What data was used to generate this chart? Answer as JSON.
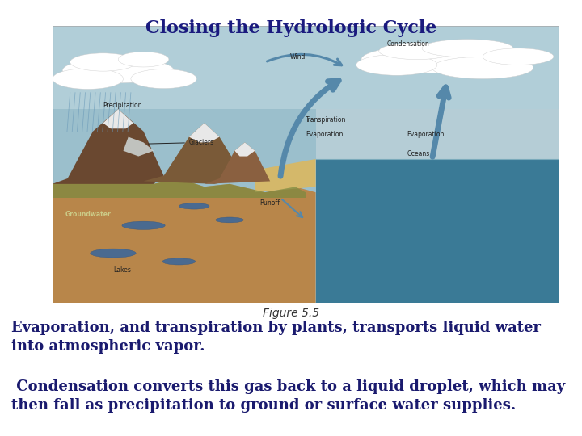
{
  "title": "Closing the Hydrologic Cycle",
  "title_color": "#1a1a7e",
  "title_fontsize": 16,
  "figure_caption": "Figure 5.5",
  "caption_fontsize": 10,
  "caption_color": "#333333",
  "body_text_1": "Evaporation, and transpiration by plants, transports liquid water\ninto atmospheric vapor.",
  "body_text_2": " Condensation converts this gas back to a liquid droplet, which may\nthen fall as precipitation to ground or surface water supplies.",
  "body_text_color": "#1a1a6e",
  "body_fontsize": 13,
  "bg_color": "#ffffff",
  "sky_color": "#9bbfcc",
  "sky_top_color": "#c8dde4",
  "land_color": "#b8864a",
  "ocean_color": "#3a7a96",
  "ocean_sky_color": "#b5cdd6",
  "beach_color": "#d4b86a",
  "green_color": "#7a8a40",
  "mountain1_color": "#7a5030",
  "mountain2_color": "#6a4428",
  "snow_color": "#e8e8e8",
  "lake_color": "#4a6a90",
  "arrow_color": "#5588aa",
  "rain_color": "#6898b8",
  "label_color": "#222222",
  "groundwater_color": "#cccc88"
}
